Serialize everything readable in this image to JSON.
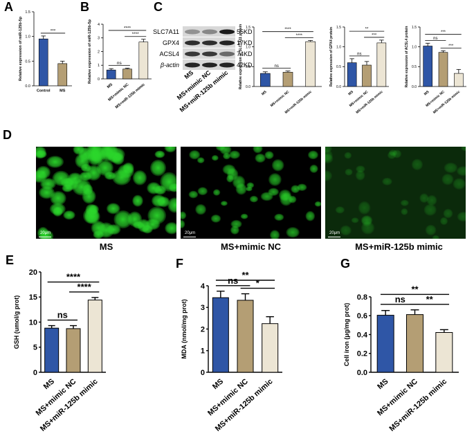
{
  "figure": {
    "panel_letters": [
      "A",
      "B",
      "C",
      "D",
      "E",
      "F",
      "G"
    ]
  },
  "western_blot": {
    "proteins": [
      "SLC7A11",
      "GPX4",
      "ACSL4",
      "β-actin"
    ],
    "sizes": [
      "55KD",
      "17KD",
      "74KD",
      "42KD"
    ],
    "lanes": [
      "MS",
      "MS+mimic NC",
      "MS+miR-125b mimic"
    ]
  },
  "microscopy": {
    "scale_label": "20μm",
    "captions": [
      "MS",
      "MS+mimic NC",
      "MS+miR-125b mimic"
    ],
    "colors": {
      "fluorescence": "#2bd72b",
      "background": "#000000"
    },
    "relative_intensity": [
      1.0,
      0.8,
      0.3
    ]
  },
  "colors": {
    "ms": "#2f56a6",
    "mimic_nc": "#b49e74",
    "mir125b": "#ece5d4"
  },
  "chart_data": [
    {
      "panel": "A",
      "type": "bar",
      "categories": [
        "Control",
        "MS"
      ],
      "values": [
        0.95,
        0.45
      ],
      "errors": [
        0.06,
        0.05
      ],
      "ylabel": "Relative expression of miR-125b-5p",
      "ylim": [
        0,
        1.5
      ],
      "yticks": [
        0.0,
        0.5,
        1.0,
        1.5
      ],
      "comparisons": [
        {
          "from": 0,
          "to": 1,
          "label": "***"
        }
      ]
    },
    {
      "panel": "B",
      "type": "bar",
      "categories": [
        "MS",
        "MS+mimic NC",
        "MS+miR-125b mimic"
      ],
      "values": [
        0.65,
        0.72,
        2.7
      ],
      "errors": [
        0.1,
        0.06,
        0.2
      ],
      "ylabel": "Relative expression of miR-125b-5p",
      "ylim": [
        0,
        4
      ],
      "yticks": [
        0,
        1,
        2,
        3,
        4
      ],
      "comparisons": [
        {
          "from": 0,
          "to": 1,
          "label": "ns"
        },
        {
          "from": 1,
          "to": 2,
          "label": "****"
        },
        {
          "from": 0,
          "to": 2,
          "label": "****"
        }
      ]
    },
    {
      "panel": "C1",
      "type": "bar",
      "categories": [
        "MS",
        "MS+mimic NC",
        "MS+miR-125b mimic"
      ],
      "values": [
        0.33,
        0.36,
        1.13
      ],
      "errors": [
        0.04,
        0.03,
        0.03
      ],
      "ylabel": "Relative expression of SLC7A11 protein",
      "ylim": [
        0,
        1.5
      ],
      "yticks": [
        0.0,
        0.5,
        1.0,
        1.5
      ],
      "comparisons": [
        {
          "from": 0,
          "to": 1,
          "label": "ns"
        },
        {
          "from": 1,
          "to": 2,
          "label": "****"
        },
        {
          "from": 0,
          "to": 2,
          "label": "****"
        }
      ]
    },
    {
      "panel": "C2",
      "type": "bar",
      "categories": [
        "MS",
        "MS+mimic NC",
        "MS+miR-125b mimic"
      ],
      "values": [
        0.6,
        0.54,
        1.1
      ],
      "errors": [
        0.1,
        0.09,
        0.07
      ],
      "ylabel": "Relative expression of GPX4 protein",
      "ylim": [
        0,
        1.5
      ],
      "yticks": [
        0.0,
        0.5,
        1.0,
        1.5
      ],
      "comparisons": [
        {
          "from": 0,
          "to": 1,
          "label": "ns"
        },
        {
          "from": 1,
          "to": 2,
          "label": "***"
        },
        {
          "from": 0,
          "to": 2,
          "label": "**"
        }
      ]
    },
    {
      "panel": "C3",
      "type": "bar",
      "categories": [
        "MS",
        "MS+mimic NC",
        "MS+miR-125b mimic"
      ],
      "values": [
        1.02,
        0.86,
        0.33
      ],
      "errors": [
        0.07,
        0.04,
        0.1
      ],
      "ylabel": "Relative expression of ACSL4 protein",
      "ylim": [
        0,
        1.5
      ],
      "yticks": [
        0.0,
        0.5,
        1.0,
        1.5
      ],
      "comparisons": [
        {
          "from": 0,
          "to": 1,
          "label": "ns"
        },
        {
          "from": 1,
          "to": 2,
          "label": "***"
        },
        {
          "from": 0,
          "to": 2,
          "label": "***"
        }
      ]
    },
    {
      "panel": "E",
      "type": "bar",
      "categories": [
        "MS",
        "MS+mimic NC",
        "MS+miR-125b mimic"
      ],
      "values": [
        8.8,
        8.7,
        14.4
      ],
      "errors": [
        0.5,
        0.6,
        0.5
      ],
      "ylabel": "GSH (umol/g prot)",
      "ylim": [
        0,
        20
      ],
      "yticks": [
        0,
        5,
        10,
        15,
        20
      ],
      "comparisons": [
        {
          "from": 0,
          "to": 1,
          "label": "ns"
        },
        {
          "from": 1,
          "to": 2,
          "label": "****"
        },
        {
          "from": 0,
          "to": 2,
          "label": "****"
        }
      ]
    },
    {
      "panel": "F",
      "type": "bar",
      "categories": [
        "MS",
        "MS+mimic NC",
        "MS+miR-125b mimic"
      ],
      "values": [
        3.45,
        3.33,
        2.25
      ],
      "errors": [
        0.3,
        0.3,
        0.32
      ],
      "ylabel": "MDA (nmol/mg prot)",
      "ylim": [
        0,
        4
      ],
      "yticks": [
        0,
        1,
        2,
        3,
        4
      ],
      "comparisons": [
        {
          "from": 0,
          "to": 1,
          "label": "ns"
        },
        {
          "from": 1,
          "to": 2,
          "label": "*"
        },
        {
          "from": 0,
          "to": 2,
          "label": "**"
        }
      ]
    },
    {
      "panel": "G",
      "type": "bar",
      "categories": [
        "MS",
        "MS+mimic NC",
        "MS+miR-125b mimic"
      ],
      "values": [
        0.605,
        0.612,
        0.422
      ],
      "errors": [
        0.05,
        0.05,
        0.03
      ],
      "ylabel": "Cell iron (μg/mg prot)",
      "ylim": [
        0,
        0.8
      ],
      "yticks": [
        0.0,
        0.2,
        0.4,
        0.6,
        0.8
      ],
      "comparisons": [
        {
          "from": 0,
          "to": 1,
          "label": "ns"
        },
        {
          "from": 1,
          "to": 2,
          "label": "**"
        },
        {
          "from": 0,
          "to": 2,
          "label": "**"
        }
      ]
    }
  ]
}
